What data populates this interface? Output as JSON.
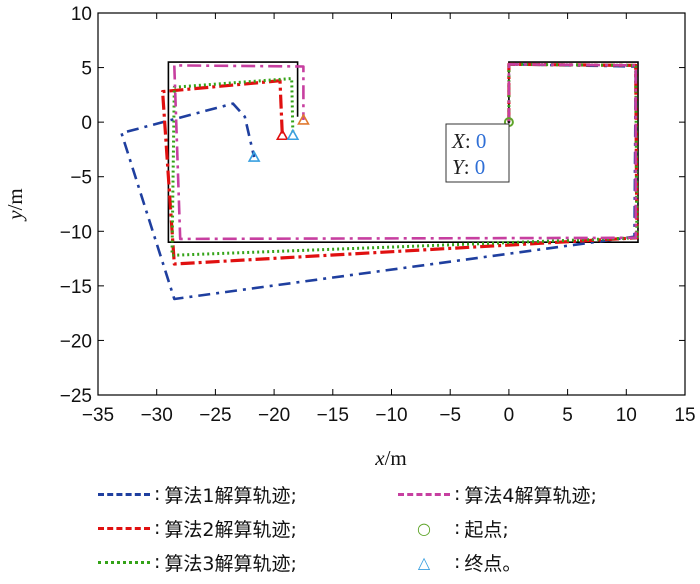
{
  "chart_data": {
    "type": "line",
    "xlabel": "x/m",
    "ylabel": "y/m",
    "xlim": [
      -35,
      15
    ],
    "ylim": [
      -25,
      10
    ],
    "xticks": [
      -35,
      -30,
      -25,
      -20,
      -15,
      -10,
      -5,
      0,
      5,
      10,
      15
    ],
    "yticks": [
      10,
      5,
      0,
      -5,
      -10,
      -15,
      -20,
      -25
    ],
    "xtick_labels": [
      "−35",
      "−30",
      "−25",
      "−20",
      "−15",
      "−10",
      "−5",
      "0",
      "5",
      "10",
      "15"
    ],
    "ytick_labels": [
      "10",
      "5",
      "0",
      "−5",
      "−10",
      "−15",
      "−20",
      "−25"
    ],
    "grid": false,
    "reference_path": {
      "color": "#000000",
      "points": [
        [
          0,
          0
        ],
        [
          0,
          5.5
        ],
        [
          11,
          5.5
        ],
        [
          11,
          -11
        ],
        [
          -29,
          -11
        ],
        [
          -29,
          5.5
        ],
        [
          -18,
          5.5
        ],
        [
          -18,
          0.5
        ]
      ]
    },
    "series": [
      {
        "name": "算法1解算轨迹",
        "color": "#1f3f9f",
        "dash": "12,6,3,6",
        "width": 2.6,
        "points": [
          [
            0,
            0
          ],
          [
            0,
            5.3
          ],
          [
            10.8,
            5.1
          ],
          [
            10.7,
            -10.5
          ],
          [
            -28.5,
            -16.2
          ],
          [
            -33,
            -1
          ],
          [
            -23.5,
            1.7
          ],
          [
            -22.5,
            0.5
          ],
          [
            -21.7,
            -3.2
          ]
        ]
      },
      {
        "name": "算法2解算轨迹",
        "color": "#e01010",
        "dash": "14,4,3,4",
        "width": 3.2,
        "points": [
          [
            0,
            0
          ],
          [
            0,
            5.3
          ],
          [
            10.8,
            5.2
          ],
          [
            10.9,
            -10.6
          ],
          [
            -28.5,
            -13
          ],
          [
            -29.5,
            2.8
          ],
          [
            -19.5,
            3.8
          ],
          [
            -19.3,
            -1.2
          ]
        ]
      },
      {
        "name": "算法3解算轨迹",
        "color": "#34a318",
        "dash": "2,3",
        "width": 3,
        "points": [
          [
            0,
            0
          ],
          [
            0,
            5.3
          ],
          [
            10.8,
            5.2
          ],
          [
            10.9,
            -10.6
          ],
          [
            -28.7,
            -12.2
          ],
          [
            -28.5,
            3.2
          ],
          [
            -18.5,
            4.0
          ],
          [
            -18.4,
            -1.2
          ]
        ]
      },
      {
        "name": "算法4解算轨迹",
        "color": "#c73fa0",
        "dash": "14,5,3,5",
        "width": 2.6,
        "points": [
          [
            0,
            0
          ],
          [
            0,
            5.3
          ],
          [
            10.8,
            5.2
          ],
          [
            10.8,
            -10.6
          ],
          [
            -28,
            -10.7
          ],
          [
            -28.5,
            5.2
          ],
          [
            -17.5,
            5.1
          ],
          [
            -17.5,
            0.2
          ]
        ]
      }
    ],
    "start_point": {
      "name": "起点",
      "x": 0,
      "y": 0,
      "color": "#5fa52a"
    },
    "end_points": [
      {
        "x": -21.7,
        "y": -3.2,
        "color": "#3aa0e0"
      },
      {
        "x": -19.3,
        "y": -1.2,
        "color": "#e01010"
      },
      {
        "x": -18.4,
        "y": -1.2,
        "color": "#3aa0e0"
      },
      {
        "x": -17.5,
        "y": 0.2,
        "color": "#e07a30"
      }
    ],
    "end_point_name": "终点",
    "datatip": {
      "x_label": "X",
      "x_value": "0",
      "y_label": "Y",
      "y_value": "0"
    }
  },
  "legend": {
    "items": [
      {
        "text": "算法1解算轨迹;",
        "color": "#1f3f9f",
        "style": "dashed"
      },
      {
        "text": "算法4解算轨迹;",
        "color": "#c73fa0",
        "style": "dashed"
      },
      {
        "text": "算法2解算轨迹;",
        "color": "#e01010",
        "style": "dashdot"
      },
      {
        "text": "起点;",
        "color": "#5fa52a",
        "symbol": "○"
      },
      {
        "text": "算法3解算轨迹;",
        "color": "#34a318",
        "style": "dotted"
      },
      {
        "text": "终点。",
        "color": "#3aa0e0",
        "symbol": "△"
      }
    ],
    "colon": ":"
  }
}
